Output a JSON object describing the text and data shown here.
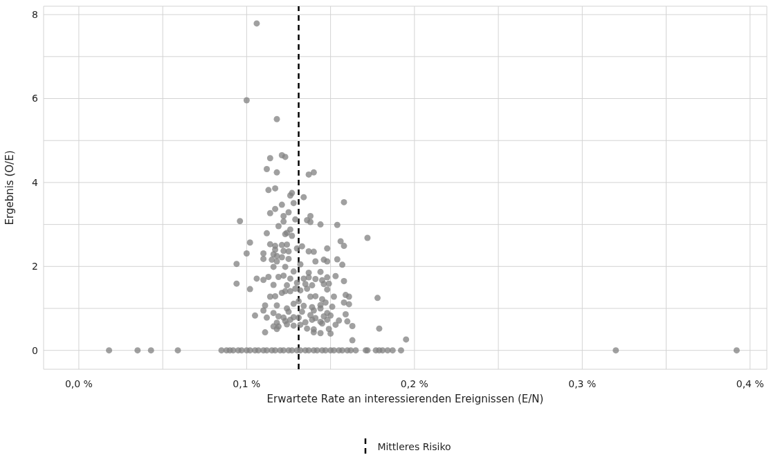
{
  "chart_data": {
    "type": "scatter",
    "xlabel": "Erwartete Rate an interessierenden Ereignissen (E/N)",
    "ylabel": "Ergebnis (O/E)",
    "xlim": [
      -0.021,
      0.41
    ],
    "ylim": [
      -0.45,
      8.2
    ],
    "xticks": [
      {
        "value": 0,
        "label": "0,0 %"
      },
      {
        "value": 0.05,
        "label": null
      },
      {
        "value": 0.1,
        "label": "0,1 %"
      },
      {
        "value": 0.15,
        "label": null
      },
      {
        "value": 0.2,
        "label": "0,2 %"
      },
      {
        "value": 0.25,
        "label": null
      },
      {
        "value": 0.3,
        "label": "0,3 %"
      },
      {
        "value": 0.35,
        "label": null
      },
      {
        "value": 0.4,
        "label": "0,4 %"
      }
    ],
    "yticks": [
      0,
      {
        "value": 1,
        "label": null
      },
      2,
      {
        "value": 3,
        "label": null
      },
      4,
      {
        "value": 5,
        "label": null
      },
      6,
      {
        "value": 7,
        "label": null
      },
      8
    ],
    "grid": true,
    "marker": "circle",
    "legend": "bottom",
    "ref_lines": [
      {
        "axis": "x",
        "value": 0.131,
        "label": "Mittleres Risiko",
        "color": "#000000",
        "line_style": "dashed"
      }
    ],
    "series": [
      {
        "color": "#808080",
        "x": [
          0.106,
          0.1,
          0.118,
          0.114,
          0.121,
          0.123,
          0.112,
          0.118,
          0.137,
          0.14,
          0.113,
          0.117,
          0.127,
          0.126,
          0.134,
          0.128,
          0.158,
          0.121,
          0.117,
          0.114,
          0.125,
          0.122,
          0.122,
          0.129,
          0.136,
          0.138,
          0.138,
          0.144,
          0.154,
          0.096,
          0.119,
          0.126,
          0.124,
          0.123,
          0.127,
          0.112,
          0.172,
          0.102,
          0.156,
          0.158,
          0.114,
          0.117,
          0.121,
          0.124,
          0.133,
          0.13,
          0.117,
          0.122,
          0.125,
          0.137,
          0.14,
          0.148,
          0.1,
          0.11,
          0.116,
          0.118,
          0.121,
          0.125,
          0.11,
          0.115,
          0.118,
          0.141,
          0.146,
          0.148,
          0.154,
          0.094,
          0.157,
          0.132,
          0.116,
          0.123,
          0.128,
          0.137,
          0.144,
          0.153,
          0.148,
          0.106,
          0.11,
          0.113,
          0.119,
          0.122,
          0.126,
          0.134,
          0.137,
          0.141,
          0.145,
          0.158,
          0.094,
          0.116,
          0.124,
          0.13,
          0.135,
          0.139,
          0.146,
          0.149,
          0.102,
          0.114,
          0.117,
          0.121,
          0.123,
          0.126,
          0.129,
          0.132,
          0.136,
          0.148,
          0.138,
          0.141,
          0.145,
          0.152,
          0.159,
          0.161,
          0.178,
          0.111,
          0.118,
          0.124,
          0.128,
          0.131,
          0.134,
          0.139,
          0.144,
          0.147,
          0.158,
          0.161,
          0.11,
          0.125,
          0.133,
          0.14,
          0.144,
          0.148,
          0.151,
          0.105,
          0.116,
          0.119,
          0.122,
          0.128,
          0.131,
          0.138,
          0.141,
          0.146,
          0.15,
          0.159,
          0.112,
          0.118,
          0.123,
          0.126,
          0.135,
          0.139,
          0.144,
          0.148,
          0.155,
          0.16,
          0.116,
          0.119,
          0.124,
          0.128,
          0.132,
          0.136,
          0.14,
          0.145,
          0.149,
          0.153,
          0.163,
          0.179,
          0.111,
          0.118,
          0.14,
          0.144,
          0.15,
          0.163,
          0.195,
          0.018,
          0.035,
          0.043,
          0.059,
          0.085,
          0.088,
          0.09,
          0.092,
          0.095,
          0.097,
          0.1,
          0.102,
          0.105,
          0.107,
          0.11,
          0.112,
          0.115,
          0.117,
          0.12,
          0.122,
          0.125,
          0.127,
          0.13,
          0.132,
          0.135,
          0.137,
          0.14,
          0.142,
          0.145,
          0.147,
          0.15,
          0.152,
          0.155,
          0.157,
          0.16,
          0.162,
          0.165,
          0.171,
          0.172,
          0.177,
          0.179,
          0.181,
          0.184,
          0.187,
          0.192,
          0.32,
          0.392
        ],
        "values": [
          7.79,
          5.96,
          5.51,
          4.58,
          4.65,
          4.61,
          4.32,
          4.24,
          4.19,
          4.24,
          3.82,
          3.86,
          3.75,
          3.69,
          3.65,
          3.51,
          3.53,
          3.47,
          3.37,
          3.27,
          3.29,
          3.2,
          3.07,
          3.12,
          3.1,
          3.2,
          3.06,
          3.0,
          2.99,
          3.08,
          2.96,
          2.88,
          2.8,
          2.77,
          2.73,
          2.79,
          2.68,
          2.57,
          2.6,
          2.49,
          2.53,
          2.49,
          2.51,
          2.52,
          2.48,
          2.43,
          2.4,
          2.37,
          2.36,
          2.36,
          2.35,
          2.43,
          2.31,
          2.31,
          2.29,
          2.25,
          2.22,
          2.18,
          2.18,
          2.16,
          2.12,
          2.12,
          2.16,
          2.12,
          2.17,
          2.06,
          2.04,
          2.05,
          1.99,
          1.99,
          1.88,
          1.85,
          1.87,
          1.77,
          1.74,
          1.71,
          1.68,
          1.75,
          1.75,
          1.78,
          1.71,
          1.71,
          1.74,
          1.7,
          1.67,
          1.65,
          1.59,
          1.56,
          1.55,
          1.61,
          1.58,
          1.55,
          1.58,
          1.59,
          1.46,
          1.28,
          1.29,
          1.37,
          1.41,
          1.41,
          1.47,
          1.43,
          1.47,
          1.45,
          1.28,
          1.29,
          1.22,
          1.28,
          1.32,
          1.28,
          1.25,
          1.07,
          1.07,
          1.0,
          1.11,
          1.17,
          1.06,
          1.03,
          1.08,
          1.14,
          1.14,
          1.1,
          0.95,
          0.92,
          0.92,
          0.95,
          1.0,
          0.89,
          1.04,
          0.83,
          0.89,
          0.81,
          0.78,
          0.79,
          0.78,
          0.84,
          0.77,
          0.81,
          0.83,
          0.86,
          0.78,
          0.66,
          0.7,
          0.73,
          0.67,
          0.73,
          0.68,
          0.73,
          0.71,
          0.69,
          0.57,
          0.57,
          0.62,
          0.59,
          0.61,
          0.52,
          0.5,
          0.64,
          0.51,
          0.61,
          0.58,
          0.52,
          0.43,
          0.51,
          0.43,
          0.41,
          0.4,
          0.24,
          0.26,
          0,
          0,
          0,
          0,
          0,
          0,
          0,
          0,
          0,
          0,
          0,
          0,
          0,
          0,
          0,
          0,
          0,
          0,
          0,
          0,
          0,
          0,
          0,
          0,
          0,
          0,
          0,
          0,
          0,
          0,
          0,
          0,
          0,
          0,
          0,
          0,
          0,
          0,
          0,
          0,
          0,
          0,
          0,
          0,
          0,
          0,
          0
        ]
      }
    ]
  }
}
